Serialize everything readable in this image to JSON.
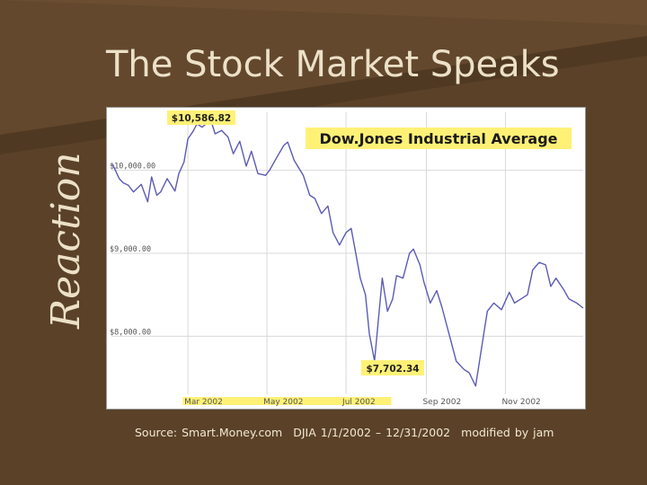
{
  "slide": {
    "title": "The Stock Market Speaks",
    "side_label": "Reaction",
    "source": "Source: Smart.Money.com",
    "range": "DJIA 1/1/2002 – 12/31/2002",
    "credit": "modified by jam"
  },
  "colors": {
    "background": "#5a4128",
    "text": "#ece1c8",
    "line": "#5b5bb5",
    "highlight": "#fff176",
    "grid": "#d9d9d9"
  },
  "chart_data": {
    "type": "line",
    "title": "Dow.Jones Industrial Average",
    "xlabel": "",
    "ylabel": "",
    "x_ticks": [
      "Mar 2002",
      "May 2002",
      "Jul 2002",
      "Sep 2002",
      "Nov 2002"
    ],
    "y_ticks": [
      "$10,000.00",
      "$9,000.00",
      "$8,000.00"
    ],
    "y_tick_values": [
      10000,
      9000,
      8000
    ],
    "xlim": [
      "2002-01-01",
      "2002-12-31"
    ],
    "ylim": [
      7300,
      10700
    ],
    "grid": true,
    "annotations": [
      {
        "label": "$10,586.82",
        "x": "2002-03-19",
        "y": 10586.82
      },
      {
        "label": "$7,702.34",
        "x": "2002-07-23",
        "y": 7702.34
      }
    ],
    "series": [
      {
        "values": [
          [
            "2002-01-02",
            10070
          ],
          [
            "2002-01-07",
            9900
          ],
          [
            "2002-01-10",
            9850
          ],
          [
            "2002-01-14",
            9820
          ],
          [
            "2002-01-18",
            9740
          ],
          [
            "2002-01-24",
            9830
          ],
          [
            "2002-01-29",
            9620
          ],
          [
            "2002-02-01",
            9920
          ],
          [
            "2002-02-05",
            9700
          ],
          [
            "2002-02-08",
            9740
          ],
          [
            "2002-02-13",
            9900
          ],
          [
            "2002-02-19",
            9750
          ],
          [
            "2002-02-22",
            9960
          ],
          [
            "2002-02-26",
            10100
          ],
          [
            "2002-03-01",
            10380
          ],
          [
            "2002-03-05",
            10470
          ],
          [
            "2002-03-08",
            10560
          ],
          [
            "2002-03-12",
            10520
          ],
          [
            "2002-03-15",
            10560
          ],
          [
            "2002-03-19",
            10586.82
          ],
          [
            "2002-03-22",
            10440
          ],
          [
            "2002-03-27",
            10480
          ],
          [
            "2002-04-01",
            10400
          ],
          [
            "2002-04-05",
            10200
          ],
          [
            "2002-04-10",
            10350
          ],
          [
            "2002-04-15",
            10050
          ],
          [
            "2002-04-19",
            10230
          ],
          [
            "2002-04-24",
            9960
          ],
          [
            "2002-04-30",
            9940
          ],
          [
            "2002-05-03",
            10000
          ],
          [
            "2002-05-08",
            10140
          ],
          [
            "2002-05-14",
            10300
          ],
          [
            "2002-05-17",
            10340
          ],
          [
            "2002-05-22",
            10120
          ],
          [
            "2002-05-29",
            9940
          ],
          [
            "2002-06-03",
            9700
          ],
          [
            "2002-06-07",
            9660
          ],
          [
            "2002-06-12",
            9480
          ],
          [
            "2002-06-17",
            9570
          ],
          [
            "2002-06-21",
            9250
          ],
          [
            "2002-06-26",
            9100
          ],
          [
            "2002-07-01",
            9250
          ],
          [
            "2002-07-05",
            9300
          ],
          [
            "2002-07-09",
            8960
          ],
          [
            "2002-07-12",
            8700
          ],
          [
            "2002-07-16",
            8500
          ],
          [
            "2002-07-19",
            8030
          ],
          [
            "2002-07-23",
            7702.34
          ],
          [
            "2002-07-26",
            8200
          ],
          [
            "2002-07-29",
            8700
          ],
          [
            "2002-08-02",
            8300
          ],
          [
            "2002-08-06",
            8450
          ],
          [
            "2002-08-09",
            8730
          ],
          [
            "2002-08-14",
            8700
          ],
          [
            "2002-08-19",
            9000
          ],
          [
            "2002-08-22",
            9050
          ],
          [
            "2002-08-27",
            8860
          ],
          [
            "2002-08-30",
            8660
          ],
          [
            "2002-09-04",
            8400
          ],
          [
            "2002-09-09",
            8550
          ],
          [
            "2002-09-13",
            8350
          ],
          [
            "2002-09-19",
            8000
          ],
          [
            "2002-09-24",
            7700
          ],
          [
            "2002-09-30",
            7600
          ],
          [
            "2002-10-04",
            7560
          ],
          [
            "2002-10-09",
            7400
          ],
          [
            "2002-10-14",
            7900
          ],
          [
            "2002-10-18",
            8300
          ],
          [
            "2002-10-23",
            8400
          ],
          [
            "2002-10-29",
            8320
          ],
          [
            "2002-11-04",
            8530
          ],
          [
            "2002-11-08",
            8400
          ],
          [
            "2002-11-13",
            8450
          ],
          [
            "2002-11-18",
            8500
          ],
          [
            "2002-11-22",
            8800
          ],
          [
            "2002-11-27",
            8890
          ],
          [
            "2002-12-02",
            8860
          ],
          [
            "2002-12-06",
            8600
          ],
          [
            "2002-12-10",
            8700
          ],
          [
            "2002-12-16",
            8560
          ],
          [
            "2002-12-20",
            8450
          ],
          [
            "2002-12-26",
            8400
          ],
          [
            "2002-12-31",
            8340
          ]
        ]
      }
    ]
  }
}
